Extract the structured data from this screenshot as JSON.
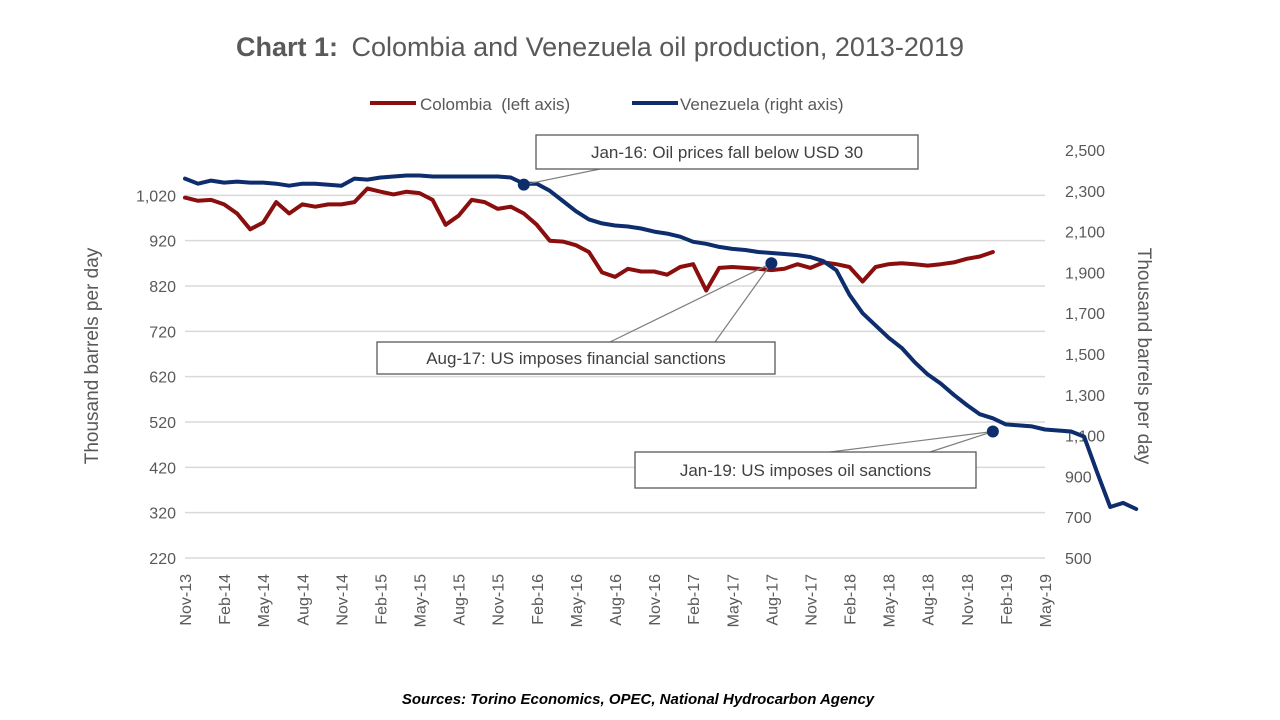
{
  "chart_data": {
    "type": "line",
    "title_bold": "Chart 1:",
    "title_rest": "Colombia and Venezuela oil production, 2013-2019",
    "source": "Sources: Torino Economics, OPEC, National Hydrocarbon Agency",
    "ylabel_left": "Thousand barrels per day",
    "ylabel_right": "Thousand barrels per day",
    "ylim_left": [
      220,
      1120
    ],
    "ylim_right": [
      500,
      2500
    ],
    "yticks_left": [
      "220",
      "320",
      "420",
      "520",
      "620",
      "720",
      "820",
      "920",
      "1,020"
    ],
    "yticks_right": [
      "500",
      "700",
      "900",
      "1,100",
      "1,300",
      "1,500",
      "1,700",
      "1,900",
      "2,100",
      "2,300",
      "2,500"
    ],
    "xticks": [
      "Nov-13",
      "Feb-14",
      "May-14",
      "Aug-14",
      "Nov-14",
      "Feb-15",
      "May-15",
      "Aug-15",
      "Nov-15",
      "Feb-16",
      "May-16",
      "Aug-16",
      "Nov-16",
      "Feb-17",
      "May-17",
      "Aug-17",
      "Nov-17",
      "Feb-18",
      "May-18",
      "Aug-18",
      "Nov-18",
      "Feb-19",
      "May-19"
    ],
    "grid": true,
    "legend_position": "top",
    "series": [
      {
        "name": "Colombia  (left axis)",
        "axis": "left",
        "color": "#8b0e0e",
        "start": "Nov-13",
        "values": [
          1015,
          1008,
          1010,
          1000,
          980,
          945,
          960,
          1005,
          980,
          1000,
          995,
          1000,
          1000,
          1005,
          1035,
          1028,
          1022,
          1028,
          1025,
          1010,
          955,
          975,
          1010,
          1005,
          990,
          995,
          980,
          955,
          920,
          918,
          910,
          895,
          850,
          840,
          858,
          852,
          852,
          845,
          862,
          868,
          810,
          860,
          862,
          860,
          858,
          855,
          858,
          868,
          860,
          872,
          868,
          862,
          830,
          862,
          868,
          870,
          868,
          865,
          868,
          872,
          880,
          885,
          895
        ]
      },
      {
        "name": "Venezuela (right axis)",
        "axis": "right",
        "color": "#0d2d6c",
        "start": "Nov-13",
        "values": [
          2360,
          2335,
          2350,
          2340,
          2345,
          2340,
          2340,
          2335,
          2325,
          2335,
          2335,
          2330,
          2325,
          2360,
          2355,
          2365,
          2370,
          2375,
          2375,
          2370,
          2370,
          2370,
          2370,
          2370,
          2370,
          2365,
          2335,
          2335,
          2300,
          2250,
          2200,
          2160,
          2140,
          2130,
          2125,
          2115,
          2100,
          2090,
          2075,
          2050,
          2040,
          2025,
          2015,
          2010,
          2000,
          1995,
          1990,
          1985,
          1975,
          1955,
          1910,
          1790,
          1700,
          1640,
          1580,
          1530,
          1460,
          1400,
          1355,
          1300,
          1250,
          1205,
          1185,
          1155,
          1150,
          1145,
          1130,
          1125,
          1120,
          1095,
          920,
          750,
          770,
          740
        ]
      }
    ],
    "annotations": [
      {
        "text": "Jan-16: Oil prices fall below USD 30",
        "date": "Jan-16",
        "value": 2330
      },
      {
        "text": "Aug-17: US imposes financial sanctions",
        "date": "Aug-17",
        "value": 1945
      },
      {
        "text": "Jan-19: US imposes oil sanctions",
        "date": "Jan-19",
        "value": 1120
      }
    ]
  }
}
